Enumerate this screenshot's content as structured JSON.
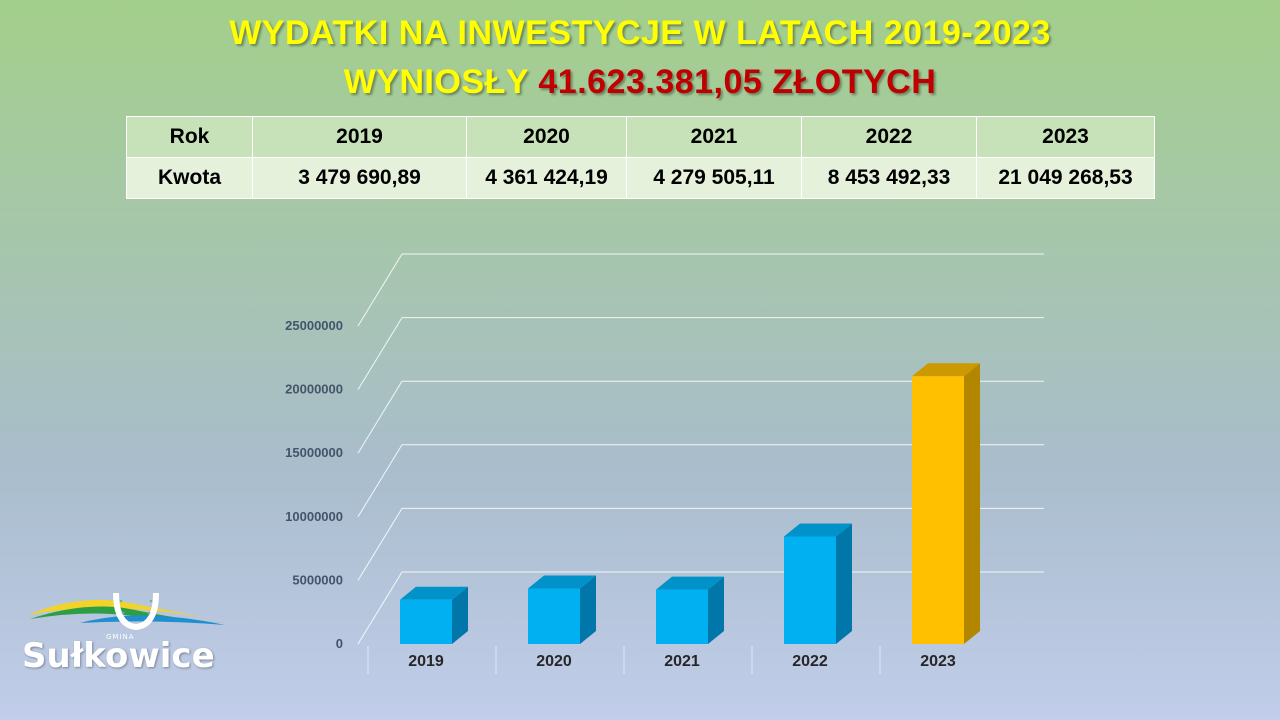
{
  "header": {
    "title_line1": "WYDATKI NA INWESTYCJE W LATACH 2019-2023",
    "title_line2_prefix": "WYNIOSŁY ",
    "title_line2_amount": "41.623.381,05 ZŁOTYCH"
  },
  "table": {
    "row1_label": "Rok",
    "row2_label": "Kwota",
    "years": [
      "2019",
      "2020",
      "2021",
      "2022",
      "2023"
    ],
    "amounts": [
      "3 479 690,89",
      "4 361 424,19",
      "4 279 505,11",
      "8 453 492,33",
      "21 049 268,53"
    ]
  },
  "chart_data": {
    "type": "bar",
    "categories": [
      "2019",
      "2020",
      "2021",
      "2022",
      "2023"
    ],
    "values": [
      3479690.89,
      4361424.19,
      4279505.11,
      8453492.33,
      21049268.53
    ],
    "ylim": [
      0,
      25000000
    ],
    "yticks": [
      "0",
      "5000000",
      "10000000",
      "15000000",
      "20000000",
      "25000000"
    ],
    "grid": true,
    "colors": {
      "normal": "#00b0f0",
      "highlight": "#ffc000"
    },
    "highlight_index": 4
  },
  "logo": {
    "name": "Sułkowice",
    "small_text": "GMINA"
  },
  "colors": {
    "title": "#ffff00",
    "amount": "#c00000"
  }
}
